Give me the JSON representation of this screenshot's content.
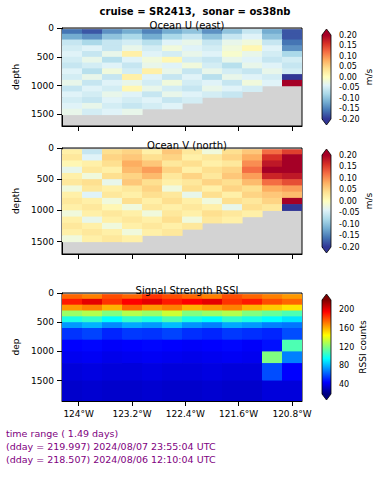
{
  "title": "cruise = SR2413,  sonar = os38nb",
  "footer": [
    "time range ( 1.49 days)",
    "(dday = 219.997) 2024/08/07 23:55:04 UTC",
    "(dday = 218.507) 2024/08/06 12:10:04 UTC"
  ],
  "chart_data": [
    {
      "type": "heatmap",
      "title": "Ocean U (east)",
      "ylabel": "depth",
      "tick_labels": "y",
      "xlim": [
        -124.25,
        -120.65
      ],
      "xticks": [
        {
          "value": -124,
          "label": "124°W"
        },
        {
          "value": -123.2,
          "label": "123.2°W"
        },
        {
          "value": -122.4,
          "label": "122.4°W"
        },
        {
          "value": -121.6,
          "label": "121.6°W"
        },
        {
          "value": -120.8,
          "label": "120.8°W"
        }
      ],
      "ylim": [
        1700,
        0
      ],
      "yticks": [
        0,
        500,
        1000,
        1500
      ],
      "x_bins": [
        -124.25,
        -123.95,
        -123.65,
        -123.35,
        -123.05,
        -122.75,
        -122.45,
        -122.15,
        -121.85,
        -121.55,
        -121.25,
        -120.95,
        -120.65
      ],
      "y_bins": [
        20,
        100,
        200,
        300,
        400,
        500,
        600,
        700,
        800,
        900,
        1000,
        1100,
        1200,
        1300,
        1400,
        1500
      ],
      "cells": [
        [
          -0.16,
          -0.18,
          -0.14,
          -0.12,
          -0.15,
          -0.12,
          -0.1,
          -0.14,
          -0.1,
          -0.06,
          -0.12,
          -0.18
        ],
        [
          -0.12,
          -0.14,
          -0.1,
          -0.08,
          -0.12,
          -0.08,
          -0.06,
          -0.1,
          -0.06,
          -0.04,
          -0.1,
          -0.18
        ],
        [
          -0.06,
          -0.08,
          -0.06,
          -0.05,
          -0.07,
          -0.04,
          -0.03,
          -0.06,
          -0.03,
          -0.02,
          -0.06,
          -0.16
        ],
        [
          -0.05,
          -0.04,
          -0.06,
          -0.03,
          -0.05,
          -0.02,
          -0.04,
          -0.05,
          -0.02,
          0.01,
          -0.04,
          -0.14
        ],
        [
          -0.04,
          -0.06,
          -0.03,
          0.02,
          -0.04,
          -0.05,
          -0.03,
          -0.04,
          -0.01,
          -0.03,
          -0.05,
          -0.08
        ],
        [
          -0.05,
          -0.03,
          -0.07,
          -0.04,
          -0.02,
          0.01,
          -0.05,
          -0.06,
          -0.03,
          -0.04,
          -0.06,
          -0.05
        ],
        [
          -0.06,
          -0.05,
          -0.04,
          -0.06,
          -0.03,
          -0.04,
          -0.02,
          -0.05,
          -0.07,
          -0.03,
          -0.04,
          -0.06
        ],
        [
          -0.04,
          -0.07,
          -0.02,
          -0.05,
          0.02,
          -0.03,
          -0.06,
          -0.03,
          -0.05,
          -0.06,
          -0.03,
          -0.05
        ],
        [
          -0.05,
          -0.03,
          -0.06,
          0.02,
          -0.04,
          -0.06,
          -0.04,
          -0.07,
          -0.03,
          -0.04,
          -0.05,
          -0.2
        ],
        [
          -0.03,
          -0.06,
          -0.04,
          -0.03,
          -0.05,
          -0.02,
          -0.05,
          -0.04,
          -0.06,
          -0.02,
          -0.04,
          0.2
        ],
        [
          -0.06,
          -0.04,
          -0.05,
          0.01,
          -0.03,
          -0.05,
          -0.06,
          -0.03,
          -0.04,
          -0.05,
          null,
          null
        ],
        [
          -0.04,
          -0.05,
          -0.03,
          -0.04,
          -0.06,
          -0.03,
          -0.04,
          -0.05,
          -0.06,
          null,
          null,
          null
        ],
        [
          -0.05,
          -0.06,
          -0.04,
          -0.05,
          -0.04,
          -0.06,
          -0.05,
          null,
          null,
          null,
          null,
          null
        ],
        [
          -0.04,
          -0.03,
          -0.05,
          -0.06,
          -0.05,
          -0.04,
          null,
          null,
          null,
          null,
          null,
          null
        ],
        [
          -0.03,
          -0.05,
          -0.04,
          -0.03,
          null,
          null,
          null,
          null,
          null,
          null,
          null,
          null
        ]
      ],
      "colorbar": {
        "label": "m/s",
        "range": [
          -0.2,
          0.2
        ],
        "ticks": [
          {
            "value": -0.2,
            "label": "-0.20"
          },
          -0.15,
          {
            "value": -0.1,
            "label": "-0.10"
          },
          -0.05,
          {
            "value": 0,
            "label": "0.00"
          },
          0.05,
          {
            "value": 0.1,
            "label": "0.10"
          },
          0.15,
          {
            "value": 0.2,
            "label": "0.20"
          }
        ]
      }
    },
    {
      "type": "heatmap",
      "title": "Ocean V (north)",
      "ylabel": "depth",
      "tick_labels": "y",
      "xlim": [
        -124.25,
        -120.65
      ],
      "xticks": [
        {
          "value": -124,
          "label": "124°W"
        },
        {
          "value": -123.2,
          "label": "123.2°W"
        },
        {
          "value": -122.4,
          "label": "122.4°W"
        },
        {
          "value": -121.6,
          "label": "121.6°W"
        },
        {
          "value": -120.8,
          "label": "120.8°W"
        }
      ],
      "ylim": [
        1700,
        0
      ],
      "yticks": [
        0,
        500,
        1000,
        1500
      ],
      "x_bins": [
        -124.25,
        -123.95,
        -123.65,
        -123.35,
        -123.05,
        -122.75,
        -122.45,
        -122.15,
        -121.85,
        -121.55,
        -121.25,
        -120.95,
        -120.65
      ],
      "y_bins": [
        20,
        100,
        200,
        300,
        400,
        500,
        600,
        700,
        800,
        900,
        1000,
        1100,
        1200,
        1300,
        1400,
        1500
      ],
      "cells": [
        [
          0.02,
          -0.06,
          0.04,
          0.05,
          0.02,
          0.06,
          0.03,
          -0.02,
          0.04,
          0.06,
          0.12,
          0.15
        ],
        [
          0.03,
          -0.04,
          0.05,
          0.06,
          0.04,
          0.05,
          0.02,
          0.03,
          0.05,
          0.08,
          0.16,
          0.2
        ],
        [
          0.01,
          0.02,
          0.04,
          0.08,
          0.06,
          0.03,
          0.04,
          0.02,
          0.03,
          0.1,
          0.18,
          0.2
        ],
        [
          -0.03,
          0.03,
          0.02,
          0.07,
          0.09,
          0.05,
          0.02,
          0.04,
          0.05,
          0.12,
          0.2,
          0.2
        ],
        [
          0.02,
          -0.02,
          0.04,
          0.05,
          0.07,
          0.03,
          0.05,
          0.03,
          0.06,
          0.09,
          0.17,
          0.18
        ],
        [
          0.03,
          0.04,
          -0.03,
          0.06,
          0.04,
          0.02,
          0.03,
          0.05,
          0.04,
          0.07,
          0.12,
          0.14
        ],
        [
          -0.02,
          0.03,
          0.02,
          0.03,
          0.05,
          -0.02,
          0.04,
          0.02,
          0.05,
          0.04,
          0.08,
          0.09
        ],
        [
          0.02,
          -0.04,
          0.03,
          0.02,
          0.04,
          0.03,
          -0.03,
          0.04,
          0.02,
          0.05,
          0.06,
          0.07
        ],
        [
          0.03,
          0.02,
          -0.02,
          0.04,
          0.02,
          0.04,
          0.02,
          -0.02,
          0.04,
          0.03,
          0.05,
          0.2
        ],
        [
          0.02,
          0.03,
          0.01,
          -0.02,
          0.03,
          0.02,
          0.03,
          0.02,
          -0.03,
          0.04,
          0.03,
          -0.2
        ],
        [
          -0.02,
          0.02,
          0.03,
          0.02,
          -0.02,
          0.03,
          0.02,
          0.04,
          0.03,
          0.02,
          null,
          null
        ],
        [
          0.02,
          -0.03,
          0.02,
          0.03,
          0.02,
          0.04,
          -0.02,
          0.03,
          0.02,
          null,
          null,
          null
        ],
        [
          0.03,
          0.02,
          -0.02,
          0.02,
          0.03,
          0.02,
          0.03,
          null,
          null,
          null,
          null,
          null
        ],
        [
          0.02,
          0.03,
          0.02,
          -0.02,
          0.02,
          0.03,
          null,
          null,
          null,
          null,
          null,
          null
        ],
        [
          -0.02,
          0.02,
          0.03,
          0.02,
          null,
          null,
          null,
          null,
          null,
          null,
          null,
          null
        ]
      ],
      "colorbar": {
        "label": "m/s",
        "range": [
          -0.2,
          0.2
        ],
        "ticks": [
          {
            "value": -0.2,
            "label": "-0.20"
          },
          -0.15,
          {
            "value": -0.1,
            "label": "-0.10"
          },
          -0.05,
          {
            "value": 0,
            "label": "0.00"
          },
          0.05,
          {
            "value": 0.1,
            "label": "0.10"
          },
          0.15,
          {
            "value": 0.2,
            "label": "0.20"
          }
        ]
      }
    },
    {
      "type": "heatmap",
      "title": "Signal Strength RSSI",
      "ylabel": "dep",
      "xlim": [
        -124.25,
        -120.65
      ],
      "xticks": [
        {
          "value": -124,
          "label": "124°W"
        },
        {
          "value": -123.2,
          "label": "123.2°W"
        },
        {
          "value": -122.4,
          "label": "122.4°W"
        },
        {
          "value": -121.6,
          "label": "121.6°W"
        },
        {
          "value": -120.8,
          "label": "120.8°W"
        }
      ],
      "ylim": [
        1850,
        0
      ],
      "yticks": [
        0,
        500,
        1000,
        1500
      ],
      "x_bins": [
        -124.25,
        -123.95,
        -123.65,
        -123.35,
        -123.05,
        -122.75,
        -122.45,
        -122.15,
        -121.85,
        -121.55,
        -121.25,
        -120.95,
        -120.65
      ],
      "y_bins": [
        20,
        100,
        200,
        300,
        400,
        500,
        600,
        800,
        1000,
        1200,
        1500,
        1850
      ],
      "cells": [
        [
          175,
          170,
          180,
          175,
          185,
          180,
          175,
          170,
          180,
          175,
          170,
          165
        ],
        [
          190,
          200,
          185,
          195,
          200,
          190,
          195,
          200,
          185,
          190,
          180,
          175
        ],
        [
          165,
          170,
          160,
          175,
          165,
          170,
          160,
          165,
          170,
          160,
          155,
          150
        ],
        [
          125,
          130,
          120,
          130,
          125,
          135,
          120,
          125,
          130,
          120,
          115,
          110
        ],
        [
          100,
          105,
          95,
          105,
          100,
          110,
          100,
          95,
          105,
          100,
          95,
          90
        ],
        [
          75,
          80,
          72,
          78,
          75,
          82,
          74,
          70,
          78,
          75,
          70,
          68
        ],
        [
          55,
          58,
          52,
          56,
          55,
          58,
          54,
          52,
          56,
          54,
          52,
          60
        ],
        [
          45,
          46,
          44,
          45,
          46,
          45,
          44,
          45,
          46,
          44,
          48,
          110
        ],
        [
          42,
          43,
          41,
          42,
          43,
          42,
          41,
          42,
          43,
          42,
          120,
          70
        ],
        [
          38,
          39,
          38,
          38,
          39,
          38,
          38,
          39,
          38,
          38,
          60,
          45
        ],
        [
          35,
          36,
          35,
          35,
          36,
          35,
          35,
          36,
          35,
          35,
          38,
          38
        ]
      ],
      "colorbar": {
        "label": "RSSI counts",
        "range": [
          20,
          220
        ],
        "ticks": [
          40,
          80,
          120,
          160,
          200
        ]
      }
    }
  ]
}
